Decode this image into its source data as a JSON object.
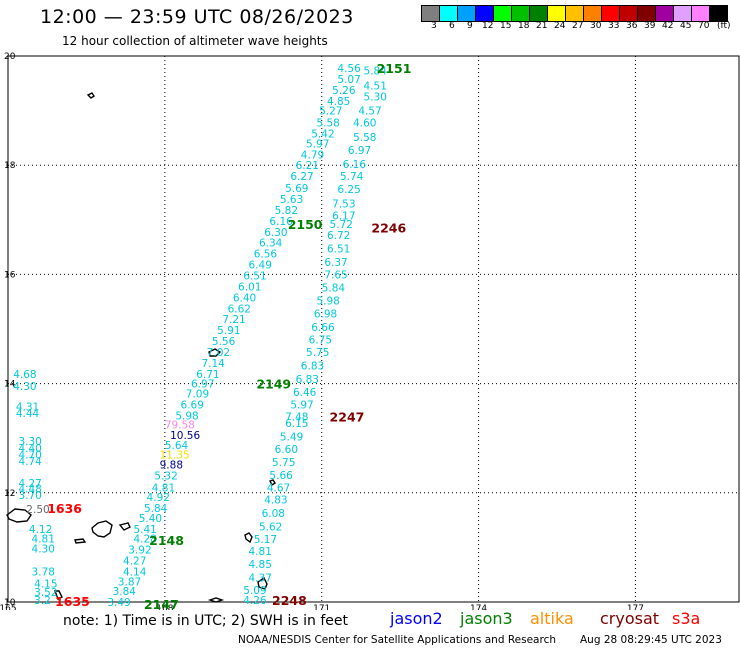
{
  "header": {
    "title": "12:00 — 23:59 UTC 08/26/2023",
    "subtitle": "12 hour collection of altimeter wave heights"
  },
  "legend": {
    "unit": "(ft)",
    "bins": [
      {
        "label": "3",
        "color": "#7f7f7f"
      },
      {
        "label": "6",
        "color": "#00ffff"
      },
      {
        "label": "9",
        "color": "#00a0ff"
      },
      {
        "label": "12",
        "color": "#0000ff"
      },
      {
        "label": "15",
        "color": "#00ff00"
      },
      {
        "label": "18",
        "color": "#00c000"
      },
      {
        "label": "21",
        "color": "#008000"
      },
      {
        "label": "24",
        "color": "#ffff00"
      },
      {
        "label": "27",
        "color": "#ffc000"
      },
      {
        "label": "30",
        "color": "#ff8000"
      },
      {
        "label": "33",
        "color": "#ff0000"
      },
      {
        "label": "36",
        "color": "#c00000"
      },
      {
        "label": "39",
        "color": "#800000"
      },
      {
        "label": "42",
        "color": "#a000a0"
      },
      {
        "label": "45",
        "color": "#e0a0ff"
      },
      {
        "label": "70",
        "color": "#ff80ff"
      },
      {
        "label": "",
        "color": "#000000"
      }
    ]
  },
  "axes": {
    "lon_labels": [
      {
        "lon": 165,
        "label": "165"
      },
      {
        "lon": 168,
        "label": "168"
      },
      {
        "lon": 171,
        "label": "171"
      },
      {
        "lon": 174,
        "label": "174"
      },
      {
        "lon": 177,
        "label": "177"
      }
    ],
    "lat_labels": [
      {
        "lat": 10,
        "label": "10"
      },
      {
        "lat": 12,
        "label": "12"
      },
      {
        "lat": 14,
        "label": "14"
      },
      {
        "lat": 16,
        "label": "16"
      },
      {
        "lat": 18,
        "label": "18"
      },
      {
        "lat": 20,
        "label": "20"
      }
    ]
  },
  "chart_data": {
    "type": "scatter",
    "xlim": [
      165,
      179
    ],
    "ylim": [
      10,
      20
    ],
    "grid": true,
    "colors": {
      "cyan": "#00c8dc",
      "green": "#008000",
      "darkred": "#800000",
      "red": "#ff0000",
      "pink": "#ff88dd",
      "yellow": "#f0e000",
      "navy": "#000090",
      "gray": "#666666"
    },
    "values": [
      {
        "lon": 171.3,
        "lat": 19.78,
        "label": "4.56",
        "color": "cyan"
      },
      {
        "lon": 171.8,
        "lat": 19.73,
        "label": "5.84",
        "color": "cyan"
      },
      {
        "lon": 171.3,
        "lat": 19.58,
        "label": "5.07",
        "color": "cyan"
      },
      {
        "lon": 171.8,
        "lat": 19.46,
        "label": "4.51",
        "color": "cyan"
      },
      {
        "lon": 171.2,
        "lat": 19.38,
        "label": "5.26",
        "color": "cyan"
      },
      {
        "lon": 171.8,
        "lat": 19.26,
        "label": "5.30",
        "color": "cyan"
      },
      {
        "lon": 171.1,
        "lat": 19.18,
        "label": "4.85",
        "color": "cyan"
      },
      {
        "lon": 171.7,
        "lat": 19.0,
        "label": "4.57",
        "color": "cyan"
      },
      {
        "lon": 170.95,
        "lat": 19.0,
        "label": "5.27",
        "color": "cyan"
      },
      {
        "lon": 170.9,
        "lat": 18.78,
        "label": "5.58",
        "color": "cyan"
      },
      {
        "lon": 171.6,
        "lat": 18.78,
        "label": "4.60",
        "color": "cyan"
      },
      {
        "lon": 170.8,
        "lat": 18.58,
        "label": "5.42",
        "color": "cyan"
      },
      {
        "lon": 171.6,
        "lat": 18.52,
        "label": "5.58",
        "color": "cyan"
      },
      {
        "lon": 170.7,
        "lat": 18.4,
        "label": "5.97",
        "color": "cyan"
      },
      {
        "lon": 171.5,
        "lat": 18.28,
        "label": "6.97",
        "color": "cyan"
      },
      {
        "lon": 170.6,
        "lat": 18.2,
        "label": "4.79",
        "color": "cyan"
      },
      {
        "lon": 171.4,
        "lat": 18.02,
        "label": "6.16",
        "color": "cyan"
      },
      {
        "lon": 170.5,
        "lat": 18.0,
        "label": "6.21",
        "color": "cyan"
      },
      {
        "lon": 170.4,
        "lat": 17.8,
        "label": "6.27",
        "color": "cyan"
      },
      {
        "lon": 171.35,
        "lat": 17.8,
        "label": "5.74",
        "color": "cyan"
      },
      {
        "lon": 170.3,
        "lat": 17.58,
        "label": "5.69",
        "color": "cyan"
      },
      {
        "lon": 171.3,
        "lat": 17.56,
        "label": "6.25",
        "color": "cyan"
      },
      {
        "lon": 170.2,
        "lat": 17.38,
        "label": "5.63",
        "color": "cyan"
      },
      {
        "lon": 171.2,
        "lat": 17.3,
        "label": "7.53",
        "color": "cyan"
      },
      {
        "lon": 170.1,
        "lat": 17.18,
        "label": "5.82",
        "color": "cyan"
      },
      {
        "lon": 171.2,
        "lat": 17.08,
        "label": "6.17",
        "color": "cyan"
      },
      {
        "lon": 170.0,
        "lat": 16.98,
        "label": "6.16",
        "color": "cyan"
      },
      {
        "lon": 171.15,
        "lat": 16.92,
        "label": "5.72",
        "color": "cyan"
      },
      {
        "lon": 169.9,
        "lat": 16.78,
        "label": "6.30",
        "color": "cyan"
      },
      {
        "lon": 171.1,
        "lat": 16.72,
        "label": "6.72",
        "color": "cyan"
      },
      {
        "lon": 169.8,
        "lat": 16.58,
        "label": "6.34",
        "color": "cyan"
      },
      {
        "lon": 171.1,
        "lat": 16.47,
        "label": "6.51",
        "color": "cyan"
      },
      {
        "lon": 169.7,
        "lat": 16.38,
        "label": "6.56",
        "color": "cyan"
      },
      {
        "lon": 171.05,
        "lat": 16.23,
        "label": "6.37",
        "color": "cyan"
      },
      {
        "lon": 169.6,
        "lat": 16.18,
        "label": "6.49",
        "color": "cyan"
      },
      {
        "lon": 171.05,
        "lat": 16.0,
        "label": "7.65",
        "color": "cyan"
      },
      {
        "lon": 169.5,
        "lat": 15.98,
        "label": "6.51",
        "color": "cyan"
      },
      {
        "lon": 169.4,
        "lat": 15.78,
        "label": "6.01",
        "color": "cyan"
      },
      {
        "lon": 171.0,
        "lat": 15.76,
        "label": "5.84",
        "color": "cyan"
      },
      {
        "lon": 169.3,
        "lat": 15.58,
        "label": "6.40",
        "color": "cyan"
      },
      {
        "lon": 170.9,
        "lat": 15.52,
        "label": "5.98",
        "color": "cyan"
      },
      {
        "lon": 169.2,
        "lat": 15.38,
        "label": "6.62",
        "color": "cyan"
      },
      {
        "lon": 170.85,
        "lat": 15.28,
        "label": "6.98",
        "color": "cyan"
      },
      {
        "lon": 169.1,
        "lat": 15.18,
        "label": "7.21",
        "color": "cyan"
      },
      {
        "lon": 170.8,
        "lat": 15.04,
        "label": "6.66",
        "color": "cyan"
      },
      {
        "lon": 169.0,
        "lat": 14.98,
        "label": "5.91",
        "color": "cyan"
      },
      {
        "lon": 168.9,
        "lat": 14.78,
        "label": "5.56",
        "color": "cyan"
      },
      {
        "lon": 170.75,
        "lat": 14.81,
        "label": "6.75",
        "color": "cyan"
      },
      {
        "lon": 168.8,
        "lat": 14.58,
        "label": "7.02",
        "color": "cyan"
      },
      {
        "lon": 170.7,
        "lat": 14.58,
        "label": "5.75",
        "color": "cyan"
      },
      {
        "lon": 168.7,
        "lat": 14.38,
        "label": "7.14",
        "color": "cyan"
      },
      {
        "lon": 170.6,
        "lat": 14.33,
        "label": "6.83",
        "color": "cyan"
      },
      {
        "lon": 168.6,
        "lat": 14.18,
        "label": "6.71",
        "color": "cyan"
      },
      {
        "lon": 170.5,
        "lat": 14.08,
        "label": "6.83",
        "color": "cyan"
      },
      {
        "lon": 168.5,
        "lat": 14.0,
        "label": "6.97",
        "color": "cyan"
      },
      {
        "lon": 168.4,
        "lat": 13.82,
        "label": "7.09",
        "color": "cyan"
      },
      {
        "lon": 170.45,
        "lat": 13.85,
        "label": "6.46",
        "color": "cyan"
      },
      {
        "lon": 168.3,
        "lat": 13.62,
        "label": "6.69",
        "color": "cyan"
      },
      {
        "lon": 170.4,
        "lat": 13.62,
        "label": "5.97",
        "color": "cyan"
      },
      {
        "lon": 168.2,
        "lat": 13.42,
        "label": "5.98",
        "color": "cyan"
      },
      {
        "lon": 170.3,
        "lat": 13.4,
        "label": "7.48",
        "color": "cyan"
      },
      {
        "lon": 168.0,
        "lat": 13.25,
        "label": "79.58",
        "color": "pink"
      },
      {
        "lon": 170.3,
        "lat": 13.28,
        "label": "6.15",
        "color": "cyan"
      },
      {
        "lon": 168.1,
        "lat": 13.06,
        "label": "10.56",
        "color": "navy"
      },
      {
        "lon": 170.2,
        "lat": 13.03,
        "label": "5.49",
        "color": "cyan"
      },
      {
        "lon": 168.0,
        "lat": 12.88,
        "label": "5.64",
        "color": "cyan"
      },
      {
        "lon": 170.1,
        "lat": 12.8,
        "label": "6.60",
        "color": "cyan"
      },
      {
        "lon": 167.9,
        "lat": 12.7,
        "label": "11.35",
        "color": "yellow"
      },
      {
        "lon": 170.05,
        "lat": 12.56,
        "label": "5.75",
        "color": "cyan"
      },
      {
        "lon": 167.9,
        "lat": 12.52,
        "label": "9.88",
        "color": "navy"
      },
      {
        "lon": 170.0,
        "lat": 12.33,
        "label": "5.66",
        "color": "cyan"
      },
      {
        "lon": 167.8,
        "lat": 12.32,
        "label": "5.32",
        "color": "cyan"
      },
      {
        "lon": 169.95,
        "lat": 12.1,
        "label": "4.67",
        "color": "cyan"
      },
      {
        "lon": 167.75,
        "lat": 12.1,
        "label": "4.81",
        "color": "cyan"
      },
      {
        "lon": 167.65,
        "lat": 11.92,
        "label": "4.92",
        "color": "cyan"
      },
      {
        "lon": 169.9,
        "lat": 11.88,
        "label": "4.83",
        "color": "cyan"
      },
      {
        "lon": 167.6,
        "lat": 11.72,
        "label": "5.84",
        "color": "cyan"
      },
      {
        "lon": 169.85,
        "lat": 11.63,
        "label": "6.08",
        "color": "cyan"
      },
      {
        "lon": 167.5,
        "lat": 11.54,
        "label": "5.40",
        "color": "cyan"
      },
      {
        "lon": 169.8,
        "lat": 11.38,
        "label": "5.62",
        "color": "cyan"
      },
      {
        "lon": 167.4,
        "lat": 11.34,
        "label": "5.41",
        "color": "cyan"
      },
      {
        "lon": 169.7,
        "lat": 11.15,
        "label": "5.17",
        "color": "cyan"
      },
      {
        "lon": 167.4,
        "lat": 11.16,
        "label": "4.28",
        "color": "cyan"
      },
      {
        "lon": 169.6,
        "lat": 10.93,
        "label": "4.81",
        "color": "cyan"
      },
      {
        "lon": 167.3,
        "lat": 10.96,
        "label": "3.92",
        "color": "cyan"
      },
      {
        "lon": 169.6,
        "lat": 10.7,
        "label": "4.85",
        "color": "cyan"
      },
      {
        "lon": 167.2,
        "lat": 10.76,
        "label": "4.27",
        "color": "cyan"
      },
      {
        "lon": 167.2,
        "lat": 10.56,
        "label": "4.14",
        "color": "cyan"
      },
      {
        "lon": 169.6,
        "lat": 10.45,
        "label": "4.37",
        "color": "cyan"
      },
      {
        "lon": 167.1,
        "lat": 10.38,
        "label": "3.87",
        "color": "cyan"
      },
      {
        "lon": 169.5,
        "lat": 10.22,
        "label": "5.09",
        "color": "cyan"
      },
      {
        "lon": 167.0,
        "lat": 10.2,
        "label": "3.84",
        "color": "cyan"
      },
      {
        "lon": 169.5,
        "lat": 10.04,
        "label": "4.26",
        "color": "cyan"
      },
      {
        "lon": 166.9,
        "lat": 10.0,
        "label": "3.49",
        "color": "cyan"
      },
      {
        "lon": 165.1,
        "lat": 14.18,
        "label": "4.68",
        "color": "cyan"
      },
      {
        "lon": 165.1,
        "lat": 13.96,
        "label": "4.30",
        "color": "cyan"
      },
      {
        "lon": 165.15,
        "lat": 13.58,
        "label": "4.31",
        "color": "cyan"
      },
      {
        "lon": 165.15,
        "lat": 13.46,
        "label": "4.44",
        "color": "cyan"
      },
      {
        "lon": 165.2,
        "lat": 12.95,
        "label": "3.30",
        "color": "cyan"
      },
      {
        "lon": 165.2,
        "lat": 12.82,
        "label": "4.40",
        "color": "cyan"
      },
      {
        "lon": 165.2,
        "lat": 12.7,
        "label": "4.70",
        "color": "cyan"
      },
      {
        "lon": 165.2,
        "lat": 12.58,
        "label": "4.74",
        "color": "cyan"
      },
      {
        "lon": 165.2,
        "lat": 12.18,
        "label": "4.27",
        "color": "cyan"
      },
      {
        "lon": 165.2,
        "lat": 12.08,
        "label": "4.48",
        "color": "cyan"
      },
      {
        "lon": 165.2,
        "lat": 11.96,
        "label": "3.70",
        "color": "cyan"
      },
      {
        "lon": 165.35,
        "lat": 11.7,
        "label": "2.50",
        "color": "gray"
      },
      {
        "lon": 165.4,
        "lat": 11.34,
        "label": "4.12",
        "color": "cyan"
      },
      {
        "lon": 165.45,
        "lat": 11.16,
        "label": "4.81",
        "color": "cyan"
      },
      {
        "lon": 165.45,
        "lat": 10.98,
        "label": "4.30",
        "color": "cyan"
      },
      {
        "lon": 165.45,
        "lat": 10.56,
        "label": "3.78",
        "color": "cyan"
      },
      {
        "lon": 165.5,
        "lat": 10.34,
        "label": "4.15",
        "color": "cyan"
      },
      {
        "lon": 165.5,
        "lat": 10.18,
        "label": "3.52",
        "color": "cyan"
      },
      {
        "lon": 165.5,
        "lat": 10.04,
        "label": "3.2",
        "color": "cyan"
      }
    ],
    "pass_labels": [
      {
        "lon": 172.05,
        "lat": 19.78,
        "label": "2151",
        "color": "green"
      },
      {
        "lon": 170.35,
        "lat": 16.92,
        "label": "2150",
        "color": "green"
      },
      {
        "lon": 171.95,
        "lat": 16.86,
        "label": "2246",
        "color": "darkred"
      },
      {
        "lon": 169.75,
        "lat": 14.0,
        "label": "2149",
        "color": "green"
      },
      {
        "lon": 171.15,
        "lat": 13.4,
        "label": "2247",
        "color": "darkred"
      },
      {
        "lon": 165.75,
        "lat": 11.72,
        "label": "1636",
        "color": "red"
      },
      {
        "lon": 167.7,
        "lat": 11.14,
        "label": "2148",
        "color": "green"
      },
      {
        "lon": 165.9,
        "lat": 10.02,
        "label": "1635",
        "color": "red"
      },
      {
        "lon": 167.6,
        "lat": 9.96,
        "label": "2147",
        "color": "green"
      },
      {
        "lon": 170.05,
        "lat": 10.04,
        "label": "2248",
        "color": "darkred"
      }
    ]
  },
  "footer": {
    "note": "note: 1) Time is in UTC; 2) SWH is in feet",
    "credit": "NOAA/NESDIS Center for Satellite Applications and Research",
    "timestamp": "Aug 28 08:29:45 UTC 2023",
    "missions": [
      {
        "label": "jason2",
        "color": "#0000ff"
      },
      {
        "label": "jason3",
        "color": "#008000"
      },
      {
        "label": "altika",
        "color": "#ff9000"
      },
      {
        "label": "cryosat",
        "color": "#800000"
      },
      {
        "label": "s3a",
        "color": "#ff0000"
      }
    ]
  }
}
